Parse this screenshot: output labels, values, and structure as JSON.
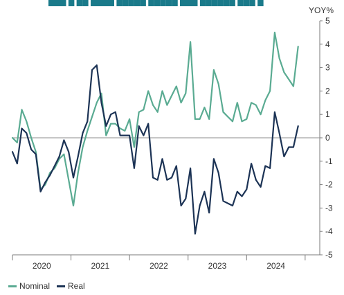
{
  "chart_data": {
    "type": "line",
    "title": "",
    "ylabel": "YOY%",
    "xlabel": "",
    "ylim": [
      -5,
      5
    ],
    "yticks": [
      5,
      4,
      3,
      2,
      1,
      0,
      -1,
      -2,
      -3,
      -4,
      -5
    ],
    "xlim": [
      2019.5,
      2024.75
    ],
    "year_labels": [
      {
        "label": "2020",
        "x": 2020.0
      },
      {
        "label": "2021",
        "x": 2021.0
      },
      {
        "label": "2022",
        "x": 2022.0
      },
      {
        "label": "2023",
        "x": 2023.0
      },
      {
        "label": "2024",
        "x": 2024.0
      }
    ],
    "year_boundaries": [
      2019.5,
      2020.5,
      2021.5,
      2022.5,
      2023.5,
      2024.5
    ],
    "grid": false,
    "legend_position": "bottom-left",
    "series": [
      {
        "name": "Nominal",
        "color": "#5aab92",
        "points": [
          [
            2019.5,
            0.0
          ],
          [
            2019.58,
            -0.2
          ],
          [
            2019.66,
            1.2
          ],
          [
            2019.74,
            0.7
          ],
          [
            2019.82,
            0.0
          ],
          [
            2019.9,
            -0.6
          ],
          [
            2019.98,
            -2.2
          ],
          [
            2020.06,
            -2.0
          ],
          [
            2020.14,
            -1.5
          ],
          [
            2020.22,
            -1.3
          ],
          [
            2020.3,
            -0.9
          ],
          [
            2020.38,
            -0.7
          ],
          [
            2020.46,
            -1.8
          ],
          [
            2020.54,
            -2.9
          ],
          [
            2020.62,
            -1.5
          ],
          [
            2020.7,
            -0.4
          ],
          [
            2020.78,
            0.3
          ],
          [
            2020.86,
            0.9
          ],
          [
            2020.94,
            1.5
          ],
          [
            2021.02,
            1.9
          ],
          [
            2021.1,
            0.1
          ],
          [
            2021.18,
            0.6
          ],
          [
            2021.26,
            0.6
          ],
          [
            2021.34,
            0.4
          ],
          [
            2021.42,
            0.3
          ],
          [
            2021.5,
            0.8
          ],
          [
            2021.58,
            -0.4
          ],
          [
            2021.66,
            1.1
          ],
          [
            2021.74,
            1.2
          ],
          [
            2021.82,
            2.0
          ],
          [
            2021.9,
            1.4
          ],
          [
            2021.98,
            1.1
          ],
          [
            2022.06,
            2.0
          ],
          [
            2022.14,
            1.4
          ],
          [
            2022.22,
            1.8
          ],
          [
            2022.3,
            2.2
          ],
          [
            2022.38,
            1.5
          ],
          [
            2022.46,
            1.9
          ],
          [
            2022.54,
            4.1
          ],
          [
            2022.62,
            0.8
          ],
          [
            2022.7,
            0.8
          ],
          [
            2022.78,
            1.3
          ],
          [
            2022.86,
            0.8
          ],
          [
            2022.94,
            2.9
          ],
          [
            2023.02,
            2.3
          ],
          [
            2023.1,
            1.1
          ],
          [
            2023.18,
            0.9
          ],
          [
            2023.26,
            0.7
          ],
          [
            2023.34,
            1.5
          ],
          [
            2023.42,
            0.7
          ],
          [
            2023.5,
            0.8
          ],
          [
            2023.58,
            1.5
          ],
          [
            2023.66,
            1.4
          ],
          [
            2023.74,
            1.0
          ],
          [
            2023.82,
            1.6
          ],
          [
            2023.9,
            2.0
          ],
          [
            2023.98,
            4.5
          ],
          [
            2024.06,
            3.4
          ],
          [
            2024.14,
            2.8
          ],
          [
            2024.22,
            2.5
          ],
          [
            2024.3,
            2.2
          ],
          [
            2024.38,
            3.9
          ]
        ]
      },
      {
        "name": "Real",
        "color": "#1c3355",
        "points": [
          [
            2019.5,
            -0.6
          ],
          [
            2019.58,
            -1.1
          ],
          [
            2019.66,
            0.4
          ],
          [
            2019.74,
            0.2
          ],
          [
            2019.82,
            -0.5
          ],
          [
            2019.9,
            -0.7
          ],
          [
            2019.98,
            -2.3
          ],
          [
            2020.06,
            -1.9
          ],
          [
            2020.14,
            -1.6
          ],
          [
            2020.22,
            -1.2
          ],
          [
            2020.3,
            -0.8
          ],
          [
            2020.38,
            -0.1
          ],
          [
            2020.46,
            -0.6
          ],
          [
            2020.54,
            -1.7
          ],
          [
            2020.62,
            -0.8
          ],
          [
            2020.7,
            0.2
          ],
          [
            2020.78,
            0.7
          ],
          [
            2020.86,
            2.9
          ],
          [
            2020.94,
            3.1
          ],
          [
            2021.02,
            1.5
          ],
          [
            2021.1,
            0.5
          ],
          [
            2021.18,
            1.0
          ],
          [
            2021.26,
            1.1
          ],
          [
            2021.34,
            0.1
          ],
          [
            2021.42,
            0.1
          ],
          [
            2021.5,
            0.1
          ],
          [
            2021.58,
            -1.3
          ],
          [
            2021.66,
            0.5
          ],
          [
            2021.74,
            0.1
          ],
          [
            2021.82,
            0.6
          ],
          [
            2021.9,
            -1.7
          ],
          [
            2021.98,
            -1.8
          ],
          [
            2022.06,
            -0.9
          ],
          [
            2022.14,
            -1.8
          ],
          [
            2022.22,
            -1.7
          ],
          [
            2022.3,
            -1.2
          ],
          [
            2022.38,
            -2.9
          ],
          [
            2022.46,
            -2.6
          ],
          [
            2022.54,
            -1.3
          ],
          [
            2022.62,
            -4.1
          ],
          [
            2022.7,
            -2.9
          ],
          [
            2022.78,
            -2.3
          ],
          [
            2022.86,
            -3.2
          ],
          [
            2022.94,
            -0.9
          ],
          [
            2023.02,
            -1.5
          ],
          [
            2023.1,
            -2.7
          ],
          [
            2023.18,
            -2.8
          ],
          [
            2023.26,
            -2.9
          ],
          [
            2023.34,
            -2.3
          ],
          [
            2023.42,
            -2.5
          ],
          [
            2023.5,
            -2.2
          ],
          [
            2023.58,
            -1.1
          ],
          [
            2023.66,
            -1.8
          ],
          [
            2023.74,
            -2.1
          ],
          [
            2023.82,
            -1.2
          ],
          [
            2023.9,
            -1.3
          ],
          [
            2023.98,
            1.1
          ],
          [
            2024.06,
            0.2
          ],
          [
            2024.14,
            -0.8
          ],
          [
            2024.22,
            -0.4
          ],
          [
            2024.3,
            -0.4
          ],
          [
            2024.38,
            0.5
          ]
        ]
      }
    ]
  }
}
